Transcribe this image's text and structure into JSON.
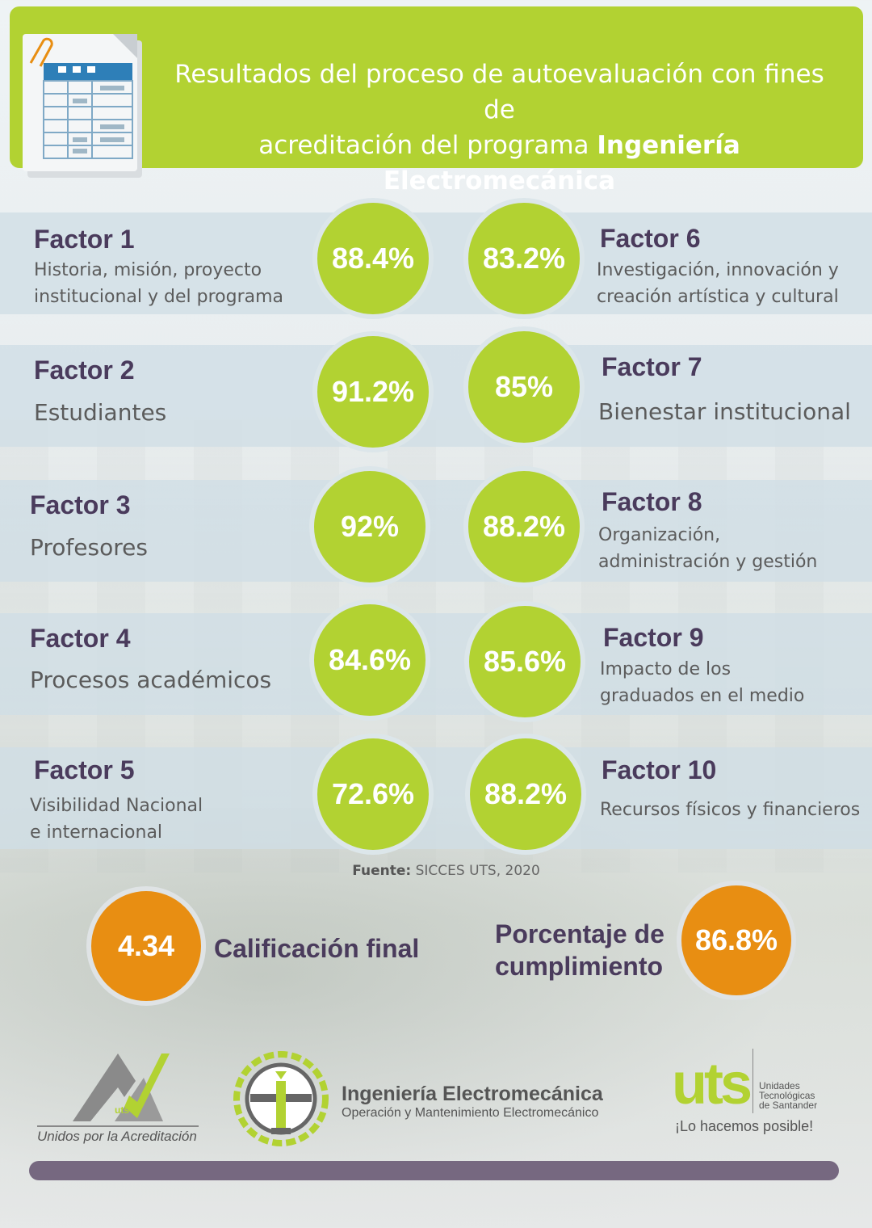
{
  "header": {
    "title_line1": "Resultados del proceso de autoevaluación con fines de",
    "title_line2_prefix": "acreditación del programa ",
    "title_line2_bold": "Ingeniería Electromecánica",
    "icon": "spreadsheet-document-icon"
  },
  "factors": [
    {
      "title": "Factor 1",
      "desc_line1": "Historia, misión, proyecto",
      "desc_line2": "institucional y del programa",
      "value": "88.4%"
    },
    {
      "title": "Factor 2",
      "desc_line1": "Estudiantes",
      "desc_line2": "",
      "value": "91.2%"
    },
    {
      "title": "Factor 3",
      "desc_line1": "Profesores",
      "desc_line2": "",
      "value": "92%"
    },
    {
      "title": "Factor 4",
      "desc_line1": "Procesos académicos",
      "desc_line2": "",
      "value": "84.6%"
    },
    {
      "title": "Factor 5",
      "desc_line1": "Visibilidad Nacional",
      "desc_line2": "e internacional",
      "value": "72.6%"
    },
    {
      "title": "Factor 6",
      "desc_line1": "Investigación, innovación y",
      "desc_line2": "creación artística y cultural",
      "value": "83.2%"
    },
    {
      "title": "Factor 7",
      "desc_line1": "Bienestar institucional",
      "desc_line2": "",
      "value": "85%"
    },
    {
      "title": "Factor 8",
      "desc_line1": "Organización,",
      "desc_line2": "administración y gestión",
      "value": "88.2%"
    },
    {
      "title": "Factor 9",
      "desc_line1": "Impacto de los",
      "desc_line2": "graduados en el medio",
      "value": "85.6%"
    },
    {
      "title": "Factor 10",
      "desc_line1": "Recursos físicos y financieros",
      "desc_line2": "",
      "value": "88.2%"
    }
  ],
  "source": {
    "label": "Fuente:",
    "text": " SICCES UTS, 2020"
  },
  "summary": {
    "final_score": "4.34",
    "final_label": "Calificación final",
    "compliance_line1": "Porcentaje de",
    "compliance_line2": "cumplimiento",
    "compliance_value": "86.8%"
  },
  "logos": {
    "accreditation_mark": "uts",
    "accreditation_caption": "Unidos por la Acreditación",
    "program_title": "Ingeniería Electromecánica",
    "program_subtitle": "Operación y Mantenimiento Electromecánico",
    "uts_mark": "uts",
    "uts_name_line1": "Unidades",
    "uts_name_line2": "Tecnológicas",
    "uts_name_line3": "de Santander",
    "uts_slogan": "¡Lo hacemos posible!"
  },
  "colors": {
    "accent_green": "#b2d232",
    "accent_orange": "#e88e12",
    "title_purple": "#4a3b5c",
    "footer_bar": "#766880"
  }
}
